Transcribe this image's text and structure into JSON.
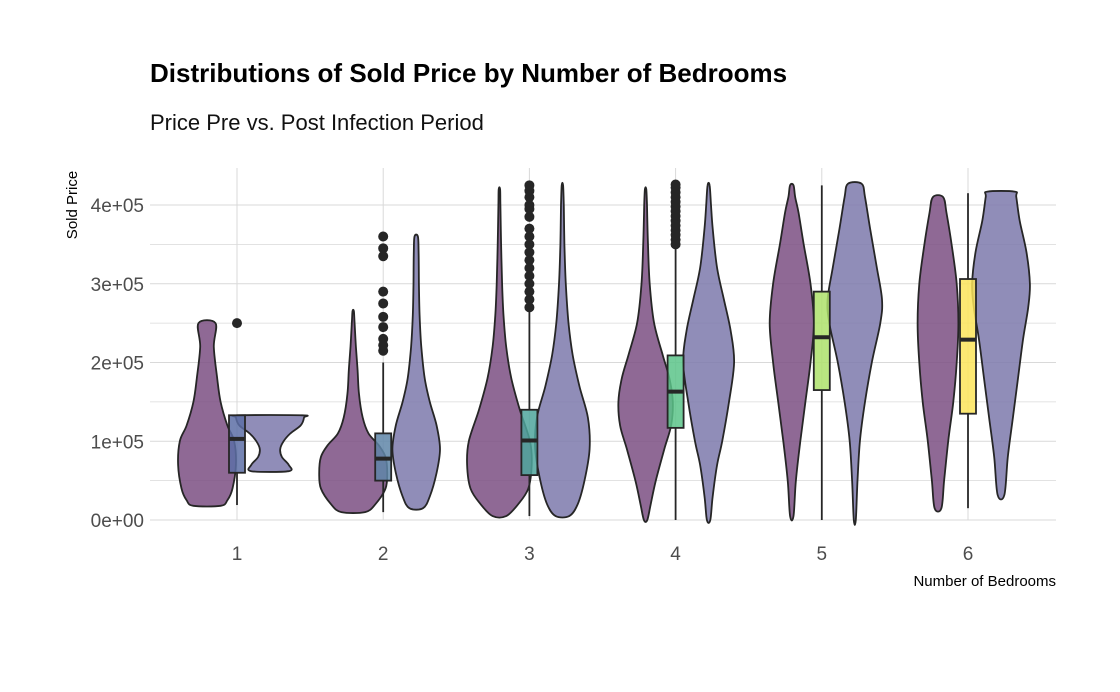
{
  "chart_data": {
    "type": "violin",
    "title": "Distributions of Sold Price by Number of Bedrooms",
    "subtitle": "Price Pre vs. Post Infection Period",
    "xlabel": "Number of Bedrooms",
    "ylabel": "Sold Price",
    "categories": [
      "1",
      "2",
      "3",
      "4",
      "5",
      "6"
    ],
    "y_ticks": [
      "0e+00",
      "1e+05",
      "2e+05",
      "3e+05",
      "4e+05"
    ],
    "y_tick_values": [
      0,
      100000,
      200000,
      300000,
      400000
    ],
    "ylim": [
      0,
      440000
    ],
    "grid": true,
    "colors": {
      "pre_violin": "#7b4f83",
      "post_violin": "#7c79ab",
      "box_fill": [
        "#5d6fa6",
        "#5f86a8",
        "#4fa69c",
        "#5cc48a",
        "#aee26b",
        "#fbe45b"
      ],
      "outline": "#262626",
      "grid": "#d9d9d9"
    },
    "violins": [
      {
        "category": "1",
        "pre": {
          "min": 18000,
          "max": 250000,
          "shape": [
            [
              18000,
              0.4
            ],
            [
              25000,
              0.6
            ],
            [
              40000,
              0.75
            ],
            [
              70000,
              0.85
            ],
            [
              100000,
              0.8
            ],
            [
              120000,
              0.6
            ],
            [
              150000,
              0.4
            ],
            [
              180000,
              0.3
            ],
            [
              220000,
              0.2
            ],
            [
              250000,
              0.25
            ]
          ]
        },
        "post": {
          "min": 62000,
          "max": 133000,
          "shape": [
            [
              62000,
              0.55
            ],
            [
              70000,
              0.55
            ],
            [
              80000,
              0.35
            ],
            [
              90000,
              0.3
            ],
            [
              100000,
              0.4
            ],
            [
              110000,
              0.6
            ],
            [
              120000,
              0.9
            ],
            [
              130000,
              1.0
            ],
            [
              133000,
              0.95
            ]
          ]
        }
      },
      {
        "category": "2",
        "pre": {
          "min": 10000,
          "max": 265000,
          "shape": [
            [
              10000,
              0.35
            ],
            [
              20000,
              0.65
            ],
            [
              40000,
              0.95
            ],
            [
              60000,
              1.0
            ],
            [
              80000,
              0.95
            ],
            [
              95000,
              0.75
            ],
            [
              110000,
              0.45
            ],
            [
              130000,
              0.28
            ],
            [
              160000,
              0.17
            ],
            [
              190000,
              0.13
            ],
            [
              220000,
              0.08
            ],
            [
              250000,
              0.04
            ],
            [
              265000,
              0.02
            ]
          ]
        },
        "post": {
          "min": 15000,
          "max": 360000,
          "shape": [
            [
              15000,
              0.2
            ],
            [
              30000,
              0.4
            ],
            [
              60000,
              0.6
            ],
            [
              90000,
              0.7
            ],
            [
              120000,
              0.6
            ],
            [
              150000,
              0.4
            ],
            [
              180000,
              0.25
            ],
            [
              220000,
              0.15
            ],
            [
              260000,
              0.1
            ],
            [
              300000,
              0.08
            ],
            [
              340000,
              0.07
            ],
            [
              360000,
              0.05
            ]
          ]
        }
      },
      {
        "category": "3",
        "pre": {
          "min": 5000,
          "max": 420000,
          "shape": [
            [
              5000,
              0.2
            ],
            [
              20000,
              0.55
            ],
            [
              40000,
              0.85
            ],
            [
              70000,
              0.95
            ],
            [
              100000,
              0.9
            ],
            [
              140000,
              0.6
            ],
            [
              180000,
              0.35
            ],
            [
              220000,
              0.2
            ],
            [
              260000,
              0.12
            ],
            [
              300000,
              0.08
            ],
            [
              350000,
              0.05
            ],
            [
              400000,
              0.03
            ],
            [
              420000,
              0.02
            ]
          ]
        },
        "post": {
          "min": 5000,
          "max": 425000,
          "shape": [
            [
              5000,
              0.2
            ],
            [
              20000,
              0.45
            ],
            [
              50000,
              0.65
            ],
            [
              90000,
              0.8
            ],
            [
              130000,
              0.75
            ],
            [
              170000,
              0.5
            ],
            [
              210000,
              0.3
            ],
            [
              250000,
              0.18
            ],
            [
              300000,
              0.1
            ],
            [
              350000,
              0.06
            ],
            [
              400000,
              0.04
            ],
            [
              425000,
              0.02
            ]
          ]
        }
      },
      {
        "category": "4",
        "pre": {
          "min": 0,
          "max": 420000,
          "shape": [
            [
              0,
              0.05
            ],
            [
              20000,
              0.15
            ],
            [
              50000,
              0.3
            ],
            [
              90000,
              0.55
            ],
            [
              120000,
              0.75
            ],
            [
              150000,
              0.8
            ],
            [
              180000,
              0.7
            ],
            [
              210000,
              0.5
            ],
            [
              250000,
              0.25
            ],
            [
              300000,
              0.12
            ],
            [
              350000,
              0.07
            ],
            [
              400000,
              0.04
            ],
            [
              420000,
              0.02
            ]
          ]
        },
        "post": {
          "min": 0,
          "max": 425000,
          "shape": [
            [
              0,
              0.05
            ],
            [
              30000,
              0.12
            ],
            [
              70000,
              0.25
            ],
            [
              100000,
              0.4
            ],
            [
              150000,
              0.6
            ],
            [
              200000,
              0.75
            ],
            [
              240000,
              0.65
            ],
            [
              280000,
              0.45
            ],
            [
              320000,
              0.25
            ],
            [
              370000,
              0.12
            ],
            [
              400000,
              0.07
            ],
            [
              425000,
              0.03
            ]
          ]
        }
      },
      {
        "category": "5",
        "pre": {
          "min": 5000,
          "max": 425000,
          "shape": [
            [
              5000,
              0.05
            ],
            [
              50000,
              0.12
            ],
            [
              100000,
              0.25
            ],
            [
              150000,
              0.4
            ],
            [
              200000,
              0.55
            ],
            [
              250000,
              0.65
            ],
            [
              300000,
              0.55
            ],
            [
              350000,
              0.35
            ],
            [
              390000,
              0.2
            ],
            [
              410000,
              0.1
            ],
            [
              425000,
              0.05
            ]
          ]
        },
        "post": {
          "min": 0,
          "max": 427000,
          "shape": [
            [
              0,
              0.03
            ],
            [
              50000,
              0.08
            ],
            [
              100000,
              0.15
            ],
            [
              150000,
              0.3
            ],
            [
              200000,
              0.5
            ],
            [
              250000,
              0.75
            ],
            [
              280000,
              0.8
            ],
            [
              320000,
              0.65
            ],
            [
              370000,
              0.45
            ],
            [
              410000,
              0.3
            ],
            [
              427000,
              0.2
            ]
          ]
        }
      },
      {
        "category": "6",
        "pre": {
          "min": 15000,
          "max": 410000,
          "shape": [
            [
              15000,
              0.1
            ],
            [
              50000,
              0.18
            ],
            [
              100000,
              0.3
            ],
            [
              150000,
              0.45
            ],
            [
              200000,
              0.55
            ],
            [
              250000,
              0.6
            ],
            [
              300000,
              0.55
            ],
            [
              350000,
              0.4
            ],
            [
              390000,
              0.25
            ],
            [
              410000,
              0.15
            ]
          ]
        },
        "post": {
          "min": 32000,
          "max": 417000,
          "shape": [
            [
              32000,
              0.1
            ],
            [
              80000,
              0.2
            ],
            [
              130000,
              0.35
            ],
            [
              180000,
              0.5
            ],
            [
              230000,
              0.65
            ],
            [
              270000,
              0.8
            ],
            [
              300000,
              0.85
            ],
            [
              340000,
              0.75
            ],
            [
              380000,
              0.55
            ],
            [
              410000,
              0.45
            ],
            [
              417000,
              0.4
            ]
          ]
        }
      }
    ],
    "boxes": [
      {
        "category": "1",
        "q1": 60000,
        "median": 103000,
        "q3": 133000,
        "whisker_low": 19000,
        "whisker_high": 133000,
        "outliers": [
          250000
        ]
      },
      {
        "category": "2",
        "q1": 50000,
        "median": 78000,
        "q3": 110000,
        "whisker_low": 10000,
        "whisker_high": 200000,
        "outliers": [
          215000,
          222000,
          230000,
          245000,
          258000,
          275000,
          290000,
          335000,
          345000,
          360000
        ]
      },
      {
        "category": "3",
        "q1": 57000,
        "median": 101000,
        "q3": 140000,
        "whisker_low": 5000,
        "whisker_high": 265000,
        "outliers": [
          270000,
          280000,
          290000,
          300000,
          310000,
          320000,
          330000,
          340000,
          350000,
          360000,
          370000,
          385000,
          395000,
          400000,
          410000,
          418000,
          425000
        ]
      },
      {
        "category": "4",
        "q1": 117000,
        "median": 163000,
        "q3": 209000,
        "whisker_low": 0,
        "whisker_high": 345000,
        "outliers": [
          350000,
          356000,
          362000,
          368000,
          374000,
          380000,
          386000,
          392000,
          398000,
          404000,
          410000,
          416000,
          422000,
          426000
        ]
      },
      {
        "category": "5",
        "q1": 165000,
        "median": 232000,
        "q3": 290000,
        "whisker_low": 0,
        "whisker_high": 425000,
        "outliers": []
      },
      {
        "category": "6",
        "q1": 135000,
        "median": 229000,
        "q3": 306000,
        "whisker_low": 15000,
        "whisker_high": 415000,
        "outliers": []
      }
    ]
  }
}
